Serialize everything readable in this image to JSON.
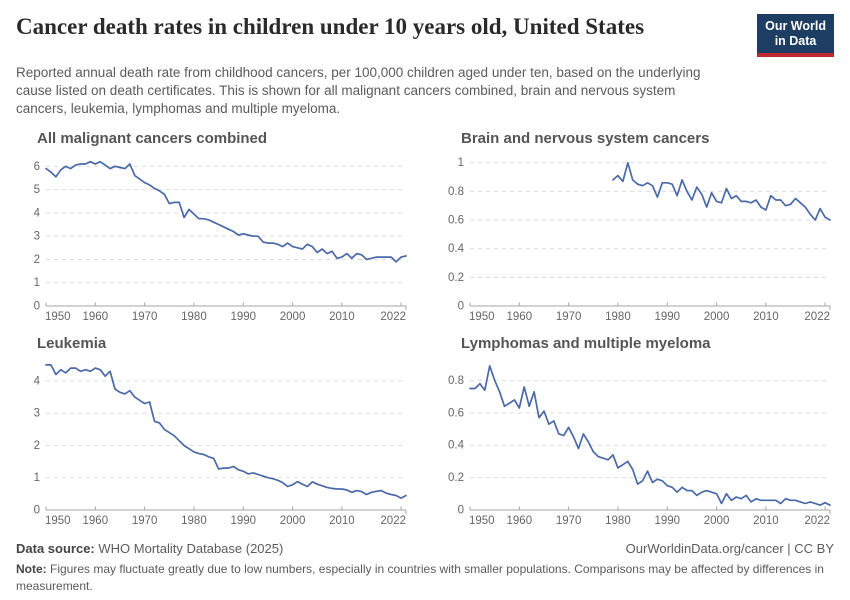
{
  "header": {
    "title": "Cancer death rates in children under 10 years old, United States",
    "subtitle": "Reported annual death rate from childhood cancers, per 100,000 children aged under ten, based on the underlying cause listed on death certificates. This is shown for all malignant cancers combined, brain and nervous system cancers, leukemia, lymphomas and multiple myeloma.",
    "logo": {
      "line1": "Our World",
      "line2": "in Data",
      "bg_color": "#1d3d63",
      "accent_color": "#c0282f"
    }
  },
  "footer": {
    "source_label": "Data source:",
    "source_text": "WHO Mortality Database (2025)",
    "link_text": "OurWorldinData.org/cancer | CC BY",
    "note_label": "Note:",
    "note_text": "Figures may fluctuate greatly due to low numbers, especially in countries with smaller populations. Comparisons may be affected by differences in measurement."
  },
  "style": {
    "grid_color": "#dcdcdc",
    "axis_color": "#a5a5a5",
    "tick_label_color": "#666666"
  },
  "chart_data": [
    {
      "type": "line",
      "title": "All malignant cancers combined",
      "line_color": "#4a69a8",
      "x_start": 1950,
      "x_end": 2023,
      "xlim": [
        1950,
        2023
      ],
      "ylim": [
        0,
        6.4
      ],
      "xticks": [
        1950,
        1960,
        1970,
        1980,
        1990,
        2000,
        2010,
        2022
      ],
      "yticks": [
        0,
        1,
        2,
        3,
        4,
        5,
        6
      ],
      "values": [
        5.9,
        5.75,
        5.55,
        5.85,
        6.0,
        5.9,
        6.05,
        6.1,
        6.1,
        6.2,
        6.1,
        6.2,
        6.05,
        5.9,
        6.0,
        5.95,
        5.9,
        6.1,
        5.6,
        5.45,
        5.3,
        5.2,
        5.05,
        4.95,
        4.8,
        4.4,
        4.45,
        4.45,
        3.8,
        4.15,
        3.95,
        3.75,
        3.75,
        3.7,
        3.6,
        3.5,
        3.4,
        3.3,
        3.2,
        3.05,
        3.1,
        3.05,
        3.0,
        3.0,
        2.75,
        2.7,
        2.7,
        2.65,
        2.55,
        2.7,
        2.55,
        2.5,
        2.45,
        2.65,
        2.55,
        2.3,
        2.45,
        2.25,
        2.35,
        2.05,
        2.1,
        2.25,
        2.05,
        2.25,
        2.2,
        2.0,
        2.05,
        2.1,
        2.1,
        2.1,
        2.1,
        1.9,
        2.1,
        2.15
      ]
    },
    {
      "type": "line",
      "title": "Brain and nervous system cancers",
      "line_color": "#4a69a8",
      "x_start": 1979,
      "x_end": 2023,
      "xlim": [
        1950,
        2023
      ],
      "ylim": [
        0,
        1.04
      ],
      "xticks": [
        1950,
        1960,
        1970,
        1980,
        1990,
        2000,
        2010,
        2022
      ],
      "yticks": [
        0,
        0.2,
        0.4,
        0.6,
        0.8,
        1
      ],
      "values": [
        0.88,
        0.91,
        0.87,
        1.0,
        0.88,
        0.85,
        0.84,
        0.86,
        0.84,
        0.76,
        0.86,
        0.86,
        0.85,
        0.77,
        0.88,
        0.8,
        0.74,
        0.83,
        0.78,
        0.69,
        0.79,
        0.73,
        0.72,
        0.82,
        0.75,
        0.77,
        0.73,
        0.73,
        0.72,
        0.74,
        0.69,
        0.67,
        0.77,
        0.74,
        0.74,
        0.7,
        0.71,
        0.75,
        0.72,
        0.69,
        0.64,
        0.6,
        0.68,
        0.62,
        0.6
      ]
    },
    {
      "type": "line",
      "title": "Leukemia",
      "line_color": "#4a69a8",
      "x_start": 1950,
      "x_end": 2023,
      "xlim": [
        1950,
        2023
      ],
      "ylim": [
        0,
        4.62
      ],
      "xticks": [
        1950,
        1960,
        1970,
        1980,
        1990,
        2000,
        2010,
        2022
      ],
      "yticks": [
        0,
        1,
        2,
        3,
        4
      ],
      "values": [
        4.5,
        4.5,
        4.2,
        4.35,
        4.25,
        4.4,
        4.4,
        4.3,
        4.35,
        4.3,
        4.4,
        4.35,
        4.15,
        4.3,
        3.75,
        3.65,
        3.6,
        3.7,
        3.5,
        3.4,
        3.3,
        3.35,
        2.75,
        2.7,
        2.5,
        2.4,
        2.3,
        2.15,
        2.0,
        1.9,
        1.8,
        1.75,
        1.72,
        1.65,
        1.6,
        1.27,
        1.3,
        1.3,
        1.35,
        1.25,
        1.2,
        1.12,
        1.15,
        1.1,
        1.05,
        1.0,
        0.97,
        0.92,
        0.85,
        0.73,
        0.78,
        0.88,
        0.8,
        0.73,
        0.87,
        0.8,
        0.75,
        0.7,
        0.67,
        0.65,
        0.65,
        0.62,
        0.55,
        0.6,
        0.57,
        0.48,
        0.55,
        0.58,
        0.6,
        0.52,
        0.48,
        0.45,
        0.37,
        0.45
      ]
    },
    {
      "type": "line",
      "title": "Lymphomas and multiple myeloma",
      "line_color": "#4a69a8",
      "x_start": 1950,
      "x_end": 2023,
      "xlim": [
        1950,
        2023
      ],
      "ylim": [
        0,
        0.92
      ],
      "xticks": [
        1950,
        1960,
        1970,
        1980,
        1990,
        2000,
        2010,
        2022
      ],
      "yticks": [
        0,
        0.2,
        0.4,
        0.6,
        0.8
      ],
      "values": [
        0.75,
        0.75,
        0.78,
        0.74,
        0.89,
        0.8,
        0.73,
        0.64,
        0.66,
        0.68,
        0.63,
        0.76,
        0.64,
        0.73,
        0.57,
        0.61,
        0.53,
        0.55,
        0.47,
        0.46,
        0.51,
        0.45,
        0.38,
        0.47,
        0.42,
        0.36,
        0.33,
        0.32,
        0.31,
        0.34,
        0.26,
        0.28,
        0.3,
        0.25,
        0.16,
        0.18,
        0.24,
        0.17,
        0.19,
        0.18,
        0.15,
        0.14,
        0.11,
        0.14,
        0.12,
        0.12,
        0.09,
        0.11,
        0.12,
        0.11,
        0.1,
        0.04,
        0.1,
        0.06,
        0.08,
        0.07,
        0.09,
        0.05,
        0.07,
        0.06,
        0.06,
        0.06,
        0.06,
        0.04,
        0.07,
        0.06,
        0.06,
        0.05,
        0.04,
        0.05,
        0.04,
        0.03,
        0.045,
        0.03
      ]
    }
  ]
}
